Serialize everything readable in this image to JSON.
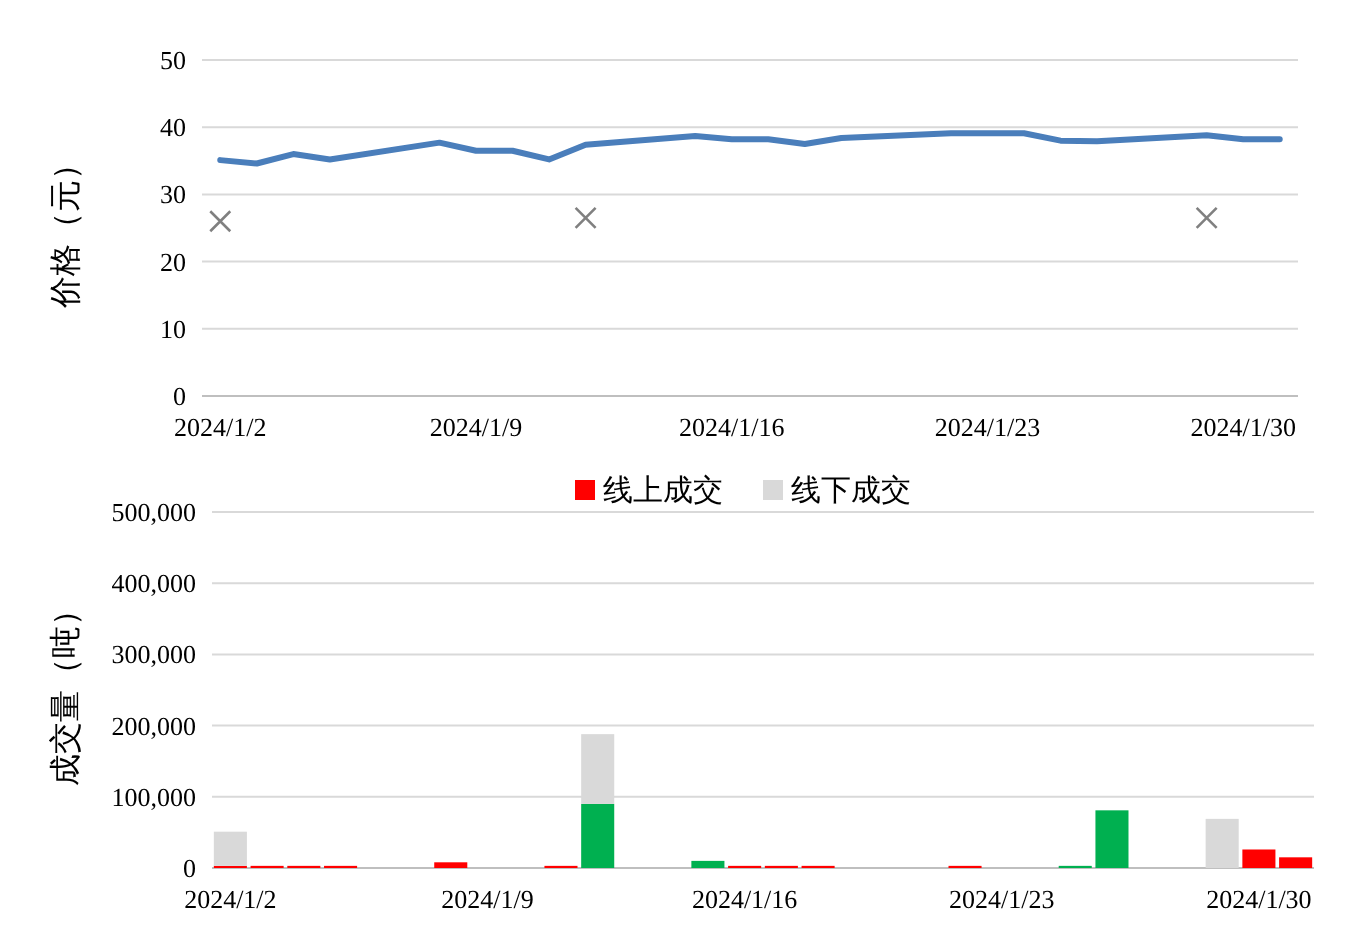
{
  "chart_data": [
    {
      "type": "line",
      "ylabel": "价格（元）",
      "ylim": [
        0,
        50
      ],
      "yticks": [
        0,
        10,
        20,
        30,
        40,
        50
      ],
      "grid": "y",
      "legend": false,
      "categories": [
        "2024/1/2",
        null,
        null,
        null,
        null,
        null,
        null,
        "2024/1/9",
        null,
        null,
        null,
        null,
        null,
        null,
        "2024/1/16",
        null,
        null,
        null,
        null,
        null,
        null,
        "2024/1/23",
        null,
        null,
        null,
        null,
        null,
        null,
        "2024/1/30",
        null
      ],
      "series": [
        {
          "color": "#4a7ebb",
          "marker": "none",
          "values": [
            35.1,
            34.6,
            36.0,
            35.2,
            null,
            null,
            37.7,
            36.5,
            36.5,
            35.2,
            37.4,
            null,
            null,
            38.7,
            38.2,
            38.2,
            37.5,
            38.4,
            null,
            null,
            39.1,
            39.1,
            39.1,
            38.0,
            37.9,
            null,
            null,
            38.8,
            38.2,
            38.2
          ]
        },
        {
          "type": "scatter",
          "color": "#808080",
          "marker": "cross",
          "values": [
            26,
            null,
            null,
            null,
            null,
            null,
            null,
            null,
            null,
            null,
            26.5,
            null,
            null,
            null,
            null,
            null,
            null,
            null,
            null,
            null,
            null,
            null,
            null,
            null,
            null,
            null,
            null,
            26.5,
            null,
            null
          ]
        }
      ]
    },
    {
      "type": "bar",
      "stacked": true,
      "ylabel": "成交量（吨）",
      "ylim": [
        0,
        500000
      ],
      "grid": "y",
      "legend": "top",
      "yticks": [
        0,
        {
          "value": 100000,
          "label": "100,000"
        },
        {
          "value": 200000,
          "label": "200,000"
        },
        {
          "value": 300000,
          "label": "300,000"
        },
        {
          "value": 400000,
          "label": "400,000"
        },
        {
          "value": 500000,
          "label": "500,000"
        }
      ],
      "categories": [
        "2024/1/2",
        null,
        null,
        null,
        null,
        null,
        null,
        "2024/1/9",
        null,
        null,
        null,
        null,
        null,
        null,
        "2024/1/16",
        null,
        null,
        null,
        null,
        null,
        null,
        "2024/1/23",
        null,
        null,
        null,
        null,
        null,
        null,
        "2024/1/30",
        null
      ],
      "series": [
        {
          "name": "线上成交",
          "color": "#ff0000",
          "colors": [
            "#ff0000",
            "#ff0000",
            "#ff0000",
            "#ff0000",
            null,
            null,
            "#ff0000",
            null,
            null,
            "#ff0000",
            "#00b050",
            null,
            null,
            "#00b050",
            "#ff0000",
            "#ff0000",
            "#ff0000",
            null,
            null,
            null,
            "#ff0000",
            null,
            null,
            "#00b050",
            "#00b050",
            null,
            null,
            null,
            "#ff0000",
            "#ff0000"
          ],
          "values": [
            3000,
            3000,
            3000,
            3000,
            null,
            null,
            8000,
            null,
            null,
            3000,
            90000,
            null,
            null,
            10000,
            3000,
            3000,
            3000,
            null,
            null,
            null,
            3000,
            null,
            null,
            3000,
            81000,
            null,
            null,
            null,
            26000,
            15000
          ]
        },
        {
          "name": "线下成交",
          "color": "#d9d9d9",
          "values": [
            48000,
            null,
            null,
            null,
            null,
            null,
            null,
            null,
            null,
            null,
            98000,
            null,
            null,
            null,
            null,
            null,
            null,
            null,
            null,
            null,
            null,
            null,
            null,
            null,
            null,
            null,
            null,
            69000,
            null,
            null
          ]
        }
      ]
    }
  ]
}
